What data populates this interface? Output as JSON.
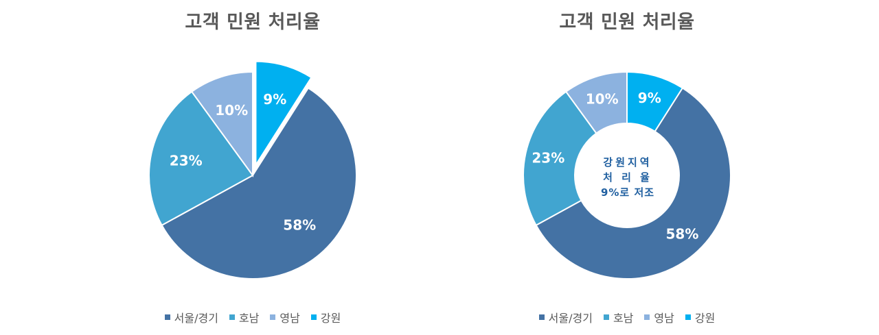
{
  "chart_data": [
    {
      "type": "pie",
      "title": "고객 민원 처리율",
      "categories": [
        "서울/경기",
        "호남",
        "영남",
        "강원"
      ],
      "values": [
        58,
        23,
        10,
        9
      ],
      "value_labels": [
        "58%",
        "23%",
        "10%",
        "9%"
      ],
      "colors": [
        "#4472A4",
        "#41A5D0",
        "#8CB2DF",
        "#00B0F0"
      ],
      "exploded": "강원",
      "legend_position": "bottom"
    },
    {
      "type": "pie",
      "variant": "donut",
      "title": "고객 민원 처리율",
      "categories": [
        "서울/경기",
        "호남",
        "영남",
        "강원"
      ],
      "values": [
        58,
        23,
        10,
        9
      ],
      "value_labels": [
        "58%",
        "23%",
        "10%",
        "9%"
      ],
      "colors": [
        "#4472A4",
        "#41A5D0",
        "#8CB2DF",
        "#00B0F0"
      ],
      "center_text": [
        "강원지역",
        "처 리 율",
        "9%로 저조"
      ],
      "legend_position": "bottom"
    }
  ]
}
